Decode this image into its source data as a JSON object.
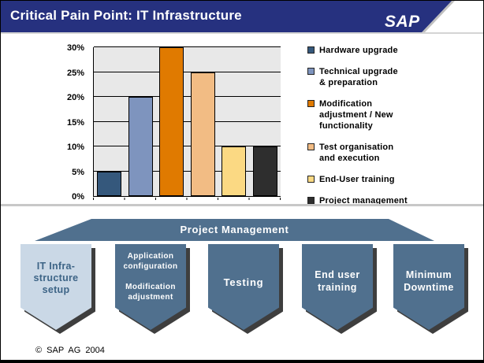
{
  "slide": {
    "title": "Critical Pain Point: IT Infrastructure",
    "logo_text": "SAP",
    "footer": "© SAP AG 2004",
    "colors": {
      "header": "#26317F",
      "divider": "#C8C8C8"
    }
  },
  "chart_data": {
    "type": "bar",
    "title": "",
    "unit": "%",
    "categories": [
      "Hardware upgrade",
      "Technical upgrade & preparation",
      "Modification adjustment / New functionality",
      "Test organisation and execution",
      "End-User training",
      "Project management"
    ],
    "values": [
      5,
      20,
      30,
      25,
      10,
      10
    ],
    "colors": [
      "#35587C",
      "#7E94BE",
      "#E07A00",
      "#F2BC84",
      "#FBD983",
      "#2E2E2E"
    ],
    "ylim": [
      0,
      30
    ],
    "y_ticks": [
      "0%",
      "5%",
      "10%",
      "15%",
      "20%",
      "25%",
      "30%"
    ],
    "grid": true,
    "legend_position": "right",
    "legend_labels": [
      "Hardware upgrade",
      "Technical upgrade\n& preparation",
      "Modification\nadjustment / New\nfunctionality",
      "Test organisation\nand execution",
      "End-User training",
      "Project management"
    ]
  },
  "process": {
    "banner_label": "Project Management",
    "colors": {
      "banner": "#50708E",
      "step": "#50708E",
      "step_highlight": "#CAD8E6",
      "step_text": "#FFFFFF",
      "step_highlight_text": "#3D6486",
      "shadow": "#3E3E3E"
    },
    "steps": [
      {
        "label": "IT Infra-\nstructure\nsetup",
        "highlight": true
      },
      {
        "label": "Application\nconfiguration\n\nModification\nadjustment",
        "highlight": false
      },
      {
        "label": "Testing",
        "highlight": false
      },
      {
        "label": "End user\ntraining",
        "highlight": false
      },
      {
        "label": "Minimum\nDowntime",
        "highlight": false
      }
    ]
  }
}
